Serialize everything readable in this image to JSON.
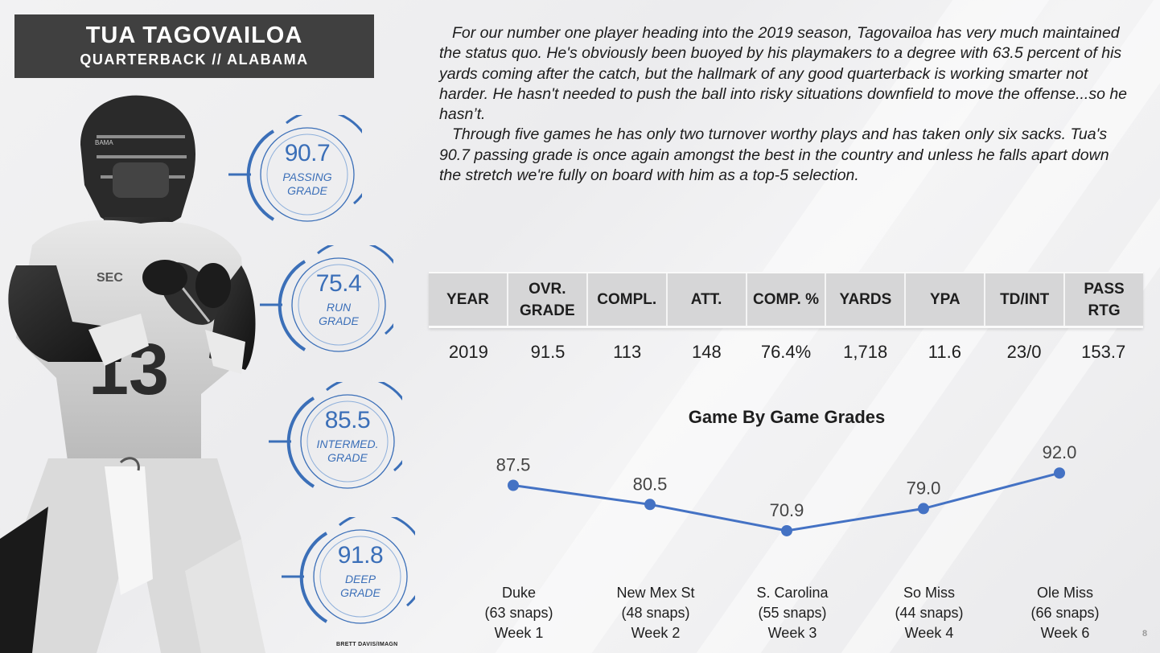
{
  "header": {
    "player_name": "TUA TAGOVAILOA",
    "position_school": "QUARTERBACK // ALABAMA"
  },
  "grades": [
    {
      "value": "90.7",
      "label_line1": "PASSING",
      "label_line2": "GRADE"
    },
    {
      "value": "75.4",
      "label_line1": "RUN",
      "label_line2": "GRADE"
    },
    {
      "value": "85.5",
      "label_line1": "INTERMED.",
      "label_line2": "GRADE"
    },
    {
      "value": "91.8",
      "label_line1": "DEEP",
      "label_line2": "GRADE"
    }
  ],
  "summary": {
    "paragraph1": "For our number one player heading into the 2019 season, Tagovailoa has very much maintained the status quo. He's obviously been buoyed by his playmakers to a degree with 63.5 percent of his yards coming after the catch, but the hallmark of any good quarterback is working smarter not harder. He hasn't needed to push the ball into risky situations downfield to move the offense...so he hasn’t.",
    "paragraph2": "Through five games he has only two turnover worthy plays and has taken only six sacks. Tua's 90.7 passing grade is once again amongst the best in the country and unless he falls apart down the stretch we're fully on board with him as a top-5 selection."
  },
  "stats_table": {
    "headers": [
      "YEAR",
      "OVR.\nGRADE",
      "COMPL.",
      "ATT.",
      "COMP. %",
      "YARDS",
      "YPA",
      "TD/INT",
      "PASS\nRTG"
    ],
    "row": [
      "2019",
      "91.5",
      "113",
      "148",
      "76.4%",
      "1,718",
      "11.6",
      "23/0",
      "153.7"
    ]
  },
  "chart_data": {
    "type": "line",
    "title": "Game By Game Grades",
    "categories": [
      [
        "Duke",
        "(63 snaps)",
        "Week 1"
      ],
      [
        "New Mex St",
        "(48 snaps)",
        "Week 2"
      ],
      [
        "S. Carolina",
        "(55 snaps)",
        "Week 3"
      ],
      [
        "So Miss",
        "(44 snaps)",
        "Week 4"
      ],
      [
        "Ole Miss",
        "(66 snaps)",
        "Week 6"
      ]
    ],
    "values": [
      87.5,
      80.5,
      70.9,
      79.0,
      92.0
    ],
    "value_labels": [
      "87.5",
      "80.5",
      "70.9",
      "79.0",
      "92.0"
    ],
    "line_color": "#4472c4",
    "xlabel": "",
    "ylabel": "",
    "grid": false,
    "legend": "none"
  },
  "colors": {
    "accent": "#3b6fb8",
    "header_bg": "#404040"
  },
  "photo_credit": "BRETT DAVIS/IMAGN",
  "page_number": "8"
}
